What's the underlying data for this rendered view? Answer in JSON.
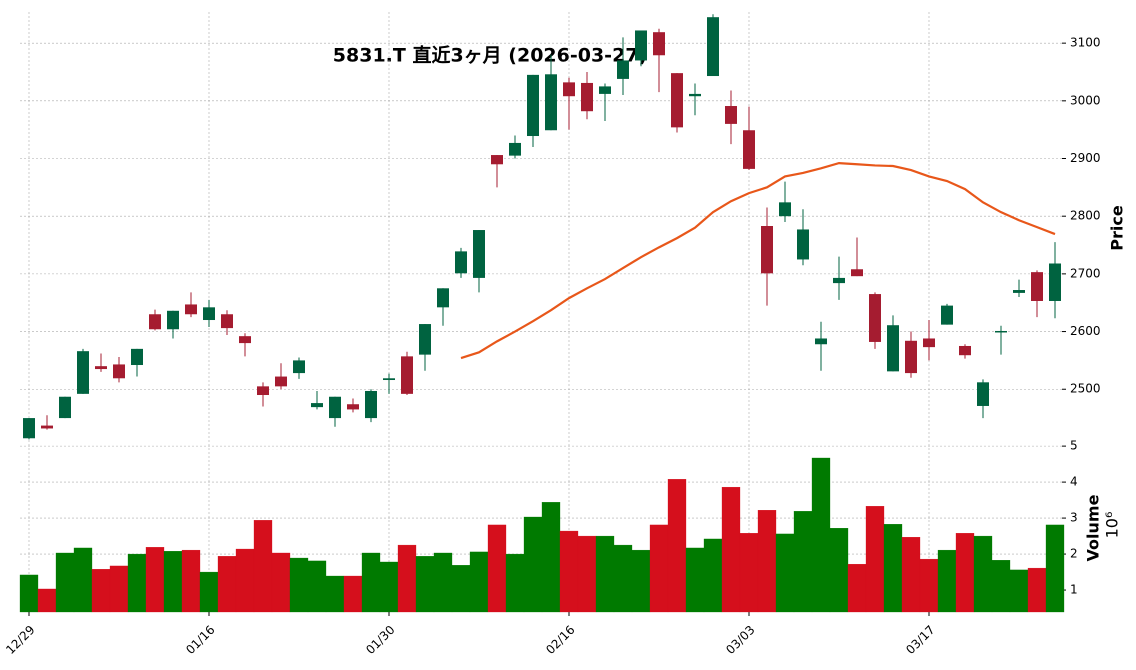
{
  "chart_data": {
    "type": "candlestick",
    "title": "5831.T 直近3ヶ月 (2026-03-27)",
    "categories": [
      "12/29",
      null,
      null,
      null,
      null,
      null,
      null,
      null,
      null,
      null,
      "01/16",
      null,
      null,
      null,
      null,
      null,
      null,
      null,
      null,
      null,
      "01/30",
      null,
      null,
      null,
      null,
      null,
      null,
      null,
      null,
      null,
      "02/16",
      null,
      null,
      null,
      null,
      null,
      null,
      null,
      null,
      null,
      "03/03",
      null,
      null,
      null,
      null,
      null,
      null,
      null,
      null,
      null,
      "03/17",
      null,
      null,
      null,
      null,
      null,
      null,
      null
    ],
    "open": [
      2415,
      2437,
      2450,
      2492,
      2540,
      2543,
      2542,
      2630,
      2604,
      2647,
      2620,
      2630,
      2592,
      2505,
      2522,
      2528,
      2469,
      2450,
      2474,
      2450,
      2516,
      2557,
      2560,
      2642,
      2701,
      2693,
      2906,
      2905,
      2939,
      2949,
      3032,
      3031,
      3012,
      3038,
      3070,
      3119,
      3048,
      3008,
      3043,
      2991,
      2949,
      2783,
      2800,
      2725,
      2578,
      2684,
      2708,
      2665,
      2531,
      2584,
      2588,
      2612,
      2575,
      2471,
      2600,
      2667,
      2703,
      2653
    ],
    "high": [
      2450,
      2455,
      2487,
      2570,
      2562,
      2556,
      2570,
      2638,
      2636,
      2668,
      2655,
      2637,
      2597,
      2512,
      2545,
      2555,
      2497,
      2487,
      2484,
      2500,
      2527,
      2565,
      2613,
      2675,
      2745,
      2776,
      2906,
      2940,
      3045,
      3080,
      3040,
      3050,
      3030,
      3110,
      3122,
      3125,
      3048,
      3030,
      3150,
      3018,
      2990,
      2815,
      2860,
      2812,
      2617,
      2730,
      2763,
      2668,
      2628,
      2600,
      2620,
      2648,
      2578,
      2517,
      2610,
      2690,
      2706,
      2755
    ],
    "low": [
      2413,
      2430,
      2450,
      2492,
      2530,
      2512,
      2522,
      2602,
      2588,
      2625,
      2608,
      2594,
      2557,
      2470,
      2500,
      2518,
      2465,
      2435,
      2460,
      2443,
      2492,
      2490,
      2532,
      2610,
      2693,
      2668,
      2850,
      2900,
      2920,
      2949,
      2950,
      2968,
      2965,
      3010,
      3060,
      3015,
      2945,
      2975,
      3043,
      2925,
      2880,
      2645,
      2790,
      2715,
      2532,
      2655,
      2696,
      2570,
      2531,
      2520,
      2550,
      2612,
      2553,
      2450,
      2560,
      2660,
      2625,
      2623
    ],
    "close": [
      2450,
      2432,
      2487,
      2566,
      2535,
      2519,
      2570,
      2604,
      2636,
      2630,
      2642,
      2606,
      2580,
      2490,
      2505,
      2550,
      2476,
      2487,
      2465,
      2497,
      2519,
      2492,
      2613,
      2675,
      2739,
      2776,
      2890,
      2927,
      3045,
      3046,
      3008,
      2982,
      3025,
      3070,
      3122,
      3079,
      2954,
      3012,
      3145,
      2960,
      2882,
      2701,
      2824,
      2777,
      2588,
      2693,
      2696,
      2582,
      2611,
      2528,
      2573,
      2645,
      2559,
      2512,
      2601,
      2672,
      2653,
      2718
    ],
    "up_color": "#006340",
    "down_color": "#a51c30",
    "ylim": [
      2412,
      3154
    ],
    "yticks": [
      2500,
      2600,
      2700,
      2800,
      2900,
      3000,
      3100
    ],
    "ylabel": "Price",
    "grid": true,
    "ma": {
      "color": "#e8571a",
      "values": [
        null,
        null,
        null,
        null,
        null,
        null,
        null,
        null,
        null,
        null,
        null,
        null,
        null,
        null,
        null,
        null,
        null,
        null,
        null,
        null,
        null,
        null,
        null,
        null,
        2554,
        2564,
        2583,
        2600,
        2618,
        2637,
        2658,
        2675,
        2691,
        2710,
        2729,
        2746,
        2762,
        2780,
        2807,
        2826,
        2840,
        2850,
        2869,
        2875,
        2883,
        2892,
        2890,
        2888,
        2887,
        2880,
        2869,
        2861,
        2847,
        2824,
        2807,
        2793,
        2781,
        2769
      ]
    },
    "volume": {
      "values": [
        1.42,
        1.03,
        2.03,
        2.17,
        1.58,
        1.67,
        2.0,
        2.19,
        2.08,
        2.11,
        1.5,
        1.94,
        2.14,
        2.94,
        2.03,
        1.89,
        1.81,
        1.39,
        1.39,
        2.03,
        1.78,
        2.25,
        1.94,
        2.03,
        1.69,
        2.06,
        2.81,
        2.0,
        3.03,
        3.44,
        2.64,
        2.5,
        2.5,
        2.25,
        2.11,
        2.81,
        4.08,
        2.17,
        2.42,
        3.86,
        2.58,
        3.22,
        2.56,
        3.19,
        4.67,
        2.72,
        1.72,
        3.33,
        2.83,
        2.47,
        1.86,
        2.11,
        2.58,
        2.5,
        1.83,
        1.56,
        1.61,
        2.81
      ],
      "up_color": "#007a00",
      "down_color": "#d50f1c",
      "ylim": [
        0.39,
        5.17
      ],
      "yticks": [
        1,
        2,
        3,
        4,
        5
      ],
      "ylabel": "Volume",
      "scale_label": "10⁶"
    }
  }
}
